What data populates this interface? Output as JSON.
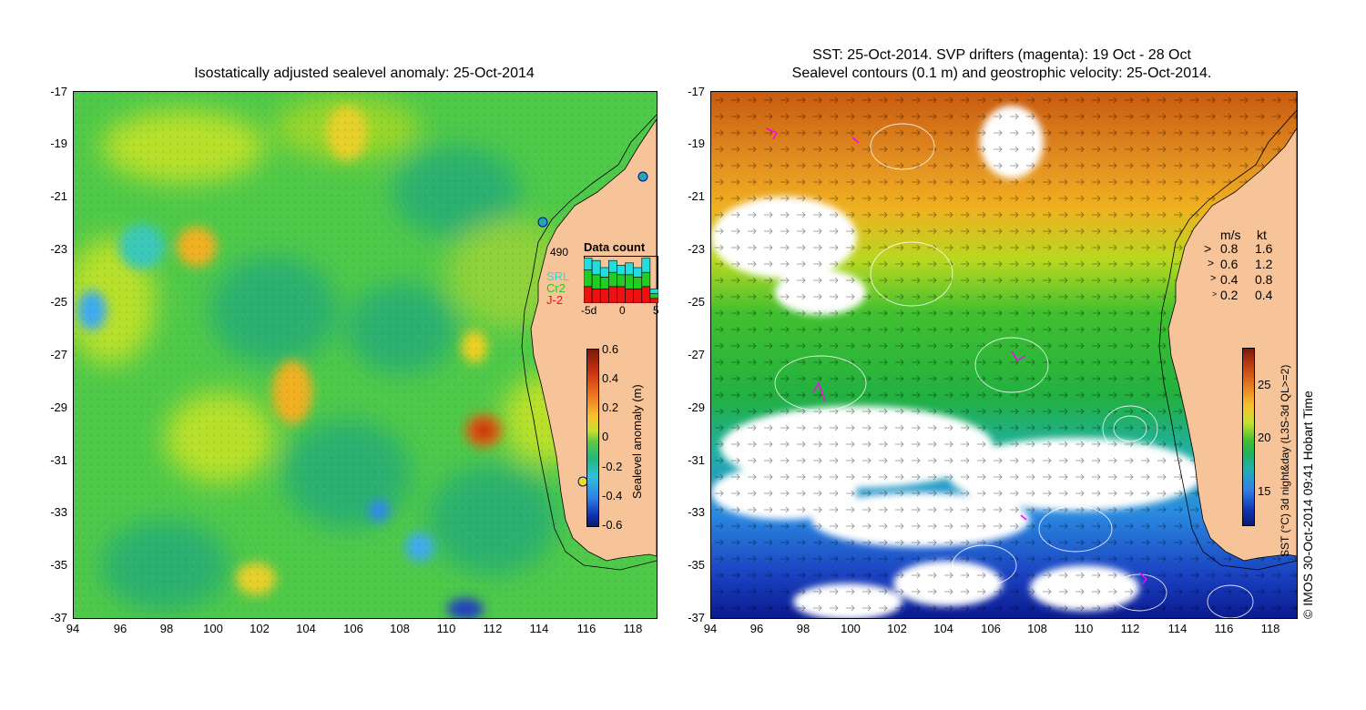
{
  "left_panel": {
    "title": "Isostatically adjusted sealevel anomaly: 25-Oct-2014",
    "y_ticks": [
      "-17",
      "-19",
      "-21",
      "-23",
      "-25",
      "-27",
      "-29",
      "-31",
      "-33",
      "-35",
      "-37"
    ],
    "x_ticks": [
      "94",
      "96",
      "98",
      "100",
      "102",
      "104",
      "106",
      "108",
      "110",
      "112",
      "114",
      "116",
      "118"
    ],
    "colorbar": {
      "label": "Sealevel anomaly (m)",
      "ticks": [
        "0.6",
        "0.4",
        "0.2",
        "0",
        "-0.2",
        "-0.4",
        "-0.6"
      ],
      "range": [
        -0.6,
        0.6
      ]
    },
    "data_count": {
      "title": "Data count",
      "total": "490",
      "missions": [
        {
          "name": "SRL",
          "color": "#22dddd"
        },
        {
          "name": "Cr2",
          "color": "#22cc22"
        },
        {
          "name": "J-2",
          "color": "#ee1111"
        }
      ],
      "x_ticks": [
        "-5d",
        "0",
        "5"
      ],
      "bars": [
        {
          "j2": 0.35,
          "cr2": 0.35,
          "srl": 0.25
        },
        {
          "j2": 0.3,
          "cr2": 0.3,
          "srl": 0.3
        },
        {
          "j2": 0.3,
          "cr2": 0.25,
          "srl": 0.2
        },
        {
          "j2": 0.35,
          "cr2": 0.3,
          "srl": 0.25
        },
        {
          "j2": 0.35,
          "cr2": 0.25,
          "srl": 0.2
        },
        {
          "j2": 0.3,
          "cr2": 0.3,
          "srl": 0.25
        },
        {
          "j2": 0.3,
          "cr2": 0.25,
          "srl": 0.2
        },
        {
          "j2": 0.35,
          "cr2": 0.3,
          "srl": 0.3
        },
        {
          "j2": 0.1,
          "cr2": 0.1,
          "srl": 0.1
        }
      ]
    }
  },
  "right_panel": {
    "title_line1": "SST: 25-Oct-2014. SVP drifters (magenta): 19 Oct - 28 Oct",
    "title_line2": "Sealevel contours (0.1 m) and geostrophic velocity: 25-Oct-2014.",
    "y_ticks": [
      "-17",
      "-19",
      "-21",
      "-23",
      "-25",
      "-27",
      "-29",
      "-31",
      "-33",
      "-35",
      "-37"
    ],
    "x_ticks": [
      "94",
      "96",
      "98",
      "100",
      "102",
      "104",
      "106",
      "108",
      "110",
      "112",
      "114",
      "116",
      "118"
    ],
    "colorbar": {
      "label": "SST (°C) 3d night&day (L3S-3d QL>=2)",
      "ticks": [
        "25",
        "20",
        "15"
      ],
      "range": [
        12,
        29
      ]
    },
    "velocity_legend": {
      "header_ms": "m/s",
      "header_kt": "kt",
      "rows": [
        {
          "ms": "0.8",
          "kt": "1.6"
        },
        {
          "ms": "0.6",
          "kt": "1.2"
        },
        {
          "ms": "0.4",
          "kt": "0.8"
        },
        {
          "ms": "0.2",
          "kt": "0.4"
        }
      ]
    },
    "credit": "© IMOS 30-Oct-2014 09:41 Hobart Time"
  },
  "colors": {
    "land": "#f7c49a",
    "cloud": "#ffffff",
    "coast_line": "#000000",
    "drifter": "#ff00ff",
    "contour": "#ffffff"
  }
}
